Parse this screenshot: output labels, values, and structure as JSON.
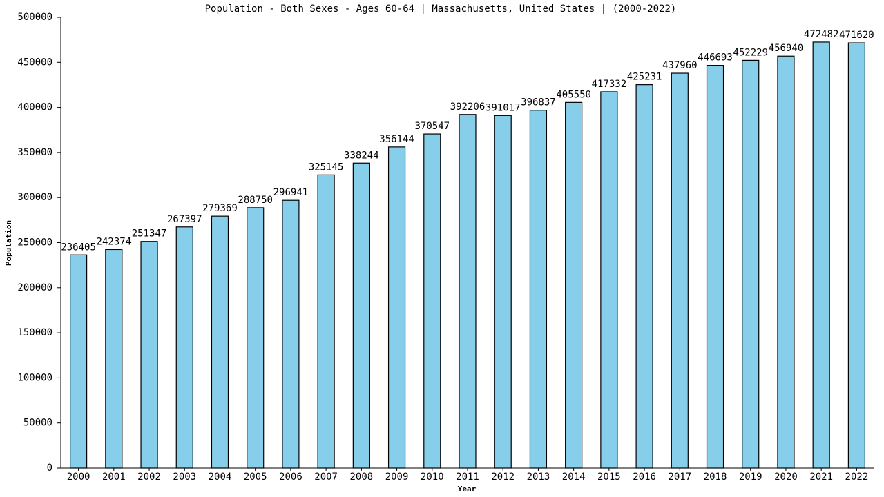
{
  "chart_data": {
    "type": "bar",
    "title": "Population - Both Sexes - Ages 60-64 | Massachusetts, United States |  (2000-2022)",
    "x_label": "Year",
    "y_label": "Population",
    "categories": [
      "2000",
      "2001",
      "2002",
      "2003",
      "2004",
      "2005",
      "2006",
      "2007",
      "2008",
      "2009",
      "2010",
      "2011",
      "2012",
      "2013",
      "2014",
      "2015",
      "2016",
      "2017",
      "2018",
      "2019",
      "2020",
      "2021",
      "2022"
    ],
    "values": [
      236405,
      242374,
      251347,
      267397,
      279369,
      288750,
      296941,
      325145,
      338244,
      356144,
      370547,
      392206,
      391017,
      396837,
      405550,
      417332,
      425231,
      437960,
      446693,
      452229,
      456940,
      472482,
      471620
    ],
    "color": "#87ceeb",
    "ylim": [
      0,
      500000
    ],
    "yticks": [
      0,
      50000,
      100000,
      150000,
      200000,
      250000,
      300000,
      350000,
      400000,
      450000,
      500000
    ],
    "grid": false
  }
}
